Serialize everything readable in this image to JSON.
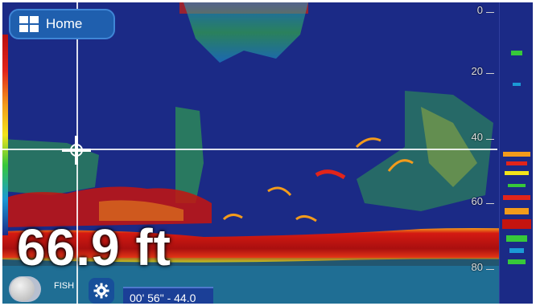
{
  "header": {
    "home_label": "Home"
  },
  "readout": {
    "depth": "66.9 ft"
  },
  "depth_scale": {
    "labels": [
      "0",
      "20",
      "40",
      "60",
      "80"
    ]
  },
  "controls": {
    "fish_label": "FISH"
  },
  "status": {
    "history_time": "00' 56\" - 44.0"
  },
  "colors": {
    "water": "#1b2a86",
    "accent": "#1f5fae",
    "bottom_return": "#c4140f"
  },
  "icons": {
    "home": "grid-icon",
    "cursor": "crosshair-cursor-icon",
    "settings": "gear-icon",
    "fish_toggle": "fish-id-toggle-icon"
  }
}
